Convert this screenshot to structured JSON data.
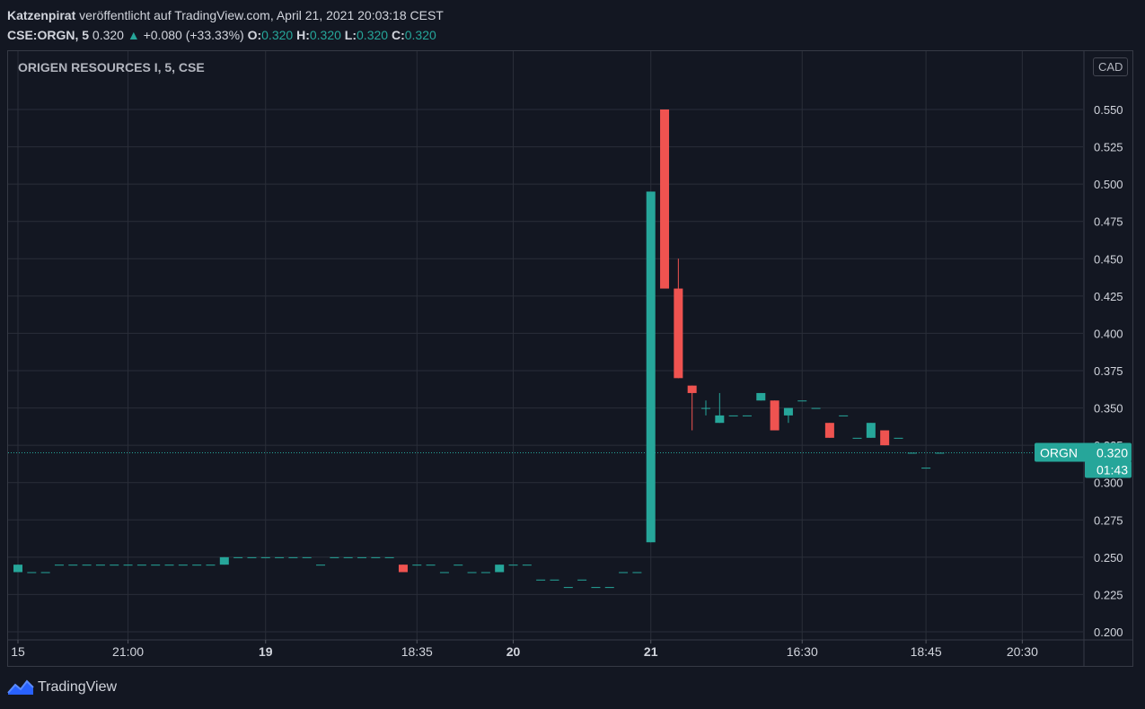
{
  "header": {
    "author": "Katzenpirat",
    "published": "veröffentlicht auf TradingView.com, April 21, 2021 20:03:18 CEST",
    "symbol_interval": "CSE:ORGN, 5",
    "last_price": "0.320",
    "change_arrow": "▲",
    "change": "+0.080 (+33.33%)",
    "o_label": "O:",
    "o_value": "0.320",
    "h_label": "H:",
    "h_value": "0.320",
    "l_label": "L:",
    "l_value": "0.320",
    "c_label": "C:",
    "c_value": "0.320"
  },
  "chart_title": "ORIGEN RESOURCES I, 5, CSE",
  "currency": "CAD",
  "price_badge": {
    "symbol": "ORGN",
    "price": "0.320",
    "countdown": "01:43"
  },
  "footer": {
    "brand": "TradingView"
  },
  "colors": {
    "up": "#26a69a",
    "down": "#ef5350",
    "background": "#131722",
    "grid": "#2a2e39"
  },
  "chart_data": {
    "type": "candlestick",
    "title": "ORIGEN RESOURCES I, 5, CSE",
    "ylim": [
      0.2,
      0.56
    ],
    "y_ticks": [
      0.2,
      0.225,
      0.25,
      0.275,
      0.3,
      0.325,
      0.35,
      0.375,
      0.4,
      0.425,
      0.45,
      0.475,
      0.5,
      0.525,
      0.55
    ],
    "x_ticks": [
      {
        "label": "15",
        "bold": false,
        "i": 0
      },
      {
        "label": "21:00",
        "bold": false,
        "i": 8
      },
      {
        "label": "19",
        "bold": true,
        "i": 18
      },
      {
        "label": "18:35",
        "bold": false,
        "i": 29
      },
      {
        "label": "20",
        "bold": true,
        "i": 36
      },
      {
        "label": "21",
        "bold": true,
        "i": 46
      },
      {
        "label": "16:30",
        "bold": false,
        "i": 57
      },
      {
        "label": "18:45",
        "bold": false,
        "i": 66
      },
      {
        "label": "20:30",
        "bold": false,
        "i": 73
      }
    ],
    "last_value": 0.32,
    "candles": [
      {
        "o": 0.24,
        "h": 0.245,
        "l": 0.24,
        "c": 0.245
      },
      {
        "o": 0.24,
        "h": 0.24,
        "l": 0.24,
        "c": 0.24
      },
      {
        "o": 0.24,
        "h": 0.24,
        "l": 0.24,
        "c": 0.24
      },
      {
        "o": 0.245,
        "h": 0.245,
        "l": 0.245,
        "c": 0.245
      },
      {
        "o": 0.245,
        "h": 0.245,
        "l": 0.245,
        "c": 0.245
      },
      {
        "o": 0.245,
        "h": 0.245,
        "l": 0.245,
        "c": 0.245
      },
      {
        "o": 0.245,
        "h": 0.245,
        "l": 0.245,
        "c": 0.245
      },
      {
        "o": 0.245,
        "h": 0.245,
        "l": 0.245,
        "c": 0.245
      },
      {
        "o": 0.245,
        "h": 0.245,
        "l": 0.245,
        "c": 0.245
      },
      {
        "o": 0.245,
        "h": 0.245,
        "l": 0.245,
        "c": 0.245
      },
      {
        "o": 0.245,
        "h": 0.245,
        "l": 0.245,
        "c": 0.245
      },
      {
        "o": 0.245,
        "h": 0.245,
        "l": 0.245,
        "c": 0.245
      },
      {
        "o": 0.245,
        "h": 0.245,
        "l": 0.245,
        "c": 0.245
      },
      {
        "o": 0.245,
        "h": 0.245,
        "l": 0.245,
        "c": 0.245
      },
      {
        "o": 0.245,
        "h": 0.245,
        "l": 0.245,
        "c": 0.245
      },
      {
        "o": 0.245,
        "h": 0.25,
        "l": 0.245,
        "c": 0.25
      },
      {
        "o": 0.25,
        "h": 0.25,
        "l": 0.25,
        "c": 0.25
      },
      {
        "o": 0.25,
        "h": 0.25,
        "l": 0.25,
        "c": 0.25
      },
      {
        "o": 0.25,
        "h": 0.25,
        "l": 0.25,
        "c": 0.25
      },
      {
        "o": 0.25,
        "h": 0.25,
        "l": 0.25,
        "c": 0.25
      },
      {
        "o": 0.25,
        "h": 0.25,
        "l": 0.25,
        "c": 0.25
      },
      {
        "o": 0.25,
        "h": 0.25,
        "l": 0.25,
        "c": 0.25
      },
      {
        "o": 0.245,
        "h": 0.245,
        "l": 0.245,
        "c": 0.245
      },
      {
        "o": 0.25,
        "h": 0.25,
        "l": 0.25,
        "c": 0.25
      },
      {
        "o": 0.25,
        "h": 0.25,
        "l": 0.25,
        "c": 0.25
      },
      {
        "o": 0.25,
        "h": 0.25,
        "l": 0.25,
        "c": 0.25
      },
      {
        "o": 0.25,
        "h": 0.25,
        "l": 0.25,
        "c": 0.25
      },
      {
        "o": 0.25,
        "h": 0.25,
        "l": 0.25,
        "c": 0.25
      },
      {
        "o": 0.245,
        "h": 0.245,
        "l": 0.24,
        "c": 0.24
      },
      {
        "o": 0.245,
        "h": 0.245,
        "l": 0.245,
        "c": 0.245
      },
      {
        "o": 0.245,
        "h": 0.245,
        "l": 0.245,
        "c": 0.245
      },
      {
        "o": 0.24,
        "h": 0.24,
        "l": 0.24,
        "c": 0.24
      },
      {
        "o": 0.245,
        "h": 0.245,
        "l": 0.245,
        "c": 0.245
      },
      {
        "o": 0.24,
        "h": 0.24,
        "l": 0.24,
        "c": 0.24
      },
      {
        "o": 0.24,
        "h": 0.24,
        "l": 0.24,
        "c": 0.24
      },
      {
        "o": 0.24,
        "h": 0.245,
        "l": 0.24,
        "c": 0.245
      },
      {
        "o": 0.245,
        "h": 0.245,
        "l": 0.245,
        "c": 0.245
      },
      {
        "o": 0.245,
        "h": 0.245,
        "l": 0.245,
        "c": 0.245
      },
      {
        "o": 0.235,
        "h": 0.235,
        "l": 0.235,
        "c": 0.235
      },
      {
        "o": 0.235,
        "h": 0.235,
        "l": 0.235,
        "c": 0.235
      },
      {
        "o": 0.23,
        "h": 0.23,
        "l": 0.23,
        "c": 0.23
      },
      {
        "o": 0.235,
        "h": 0.235,
        "l": 0.235,
        "c": 0.235
      },
      {
        "o": 0.23,
        "h": 0.23,
        "l": 0.23,
        "c": 0.23
      },
      {
        "o": 0.23,
        "h": 0.23,
        "l": 0.23,
        "c": 0.23
      },
      {
        "o": 0.24,
        "h": 0.24,
        "l": 0.24,
        "c": 0.24
      },
      {
        "o": 0.24,
        "h": 0.24,
        "l": 0.24,
        "c": 0.24
      },
      {
        "o": 0.26,
        "h": 0.495,
        "l": 0.26,
        "c": 0.495
      },
      {
        "o": 0.55,
        "h": 0.55,
        "l": 0.43,
        "c": 0.43
      },
      {
        "o": 0.43,
        "h": 0.45,
        "l": 0.37,
        "c": 0.37
      },
      {
        "o": 0.365,
        "h": 0.365,
        "l": 0.335,
        "c": 0.36
      },
      {
        "o": 0.35,
        "h": 0.355,
        "l": 0.345,
        "c": 0.35
      },
      {
        "o": 0.34,
        "h": 0.36,
        "l": 0.34,
        "c": 0.345
      },
      {
        "o": 0.345,
        "h": 0.345,
        "l": 0.345,
        "c": 0.345
      },
      {
        "o": 0.345,
        "h": 0.345,
        "l": 0.345,
        "c": 0.345
      },
      {
        "o": 0.355,
        "h": 0.36,
        "l": 0.355,
        "c": 0.36
      },
      {
        "o": 0.355,
        "h": 0.355,
        "l": 0.335,
        "c": 0.335
      },
      {
        "o": 0.345,
        "h": 0.35,
        "l": 0.34,
        "c": 0.35
      },
      {
        "o": 0.355,
        "h": 0.355,
        "l": 0.355,
        "c": 0.355
      },
      {
        "o": 0.35,
        "h": 0.35,
        "l": 0.35,
        "c": 0.35
      },
      {
        "o": 0.34,
        "h": 0.34,
        "l": 0.33,
        "c": 0.33
      },
      {
        "o": 0.345,
        "h": 0.345,
        "l": 0.345,
        "c": 0.345
      },
      {
        "o": 0.33,
        "h": 0.33,
        "l": 0.33,
        "c": 0.33
      },
      {
        "o": 0.33,
        "h": 0.34,
        "l": 0.33,
        "c": 0.34
      },
      {
        "o": 0.335,
        "h": 0.335,
        "l": 0.325,
        "c": 0.325
      },
      {
        "o": 0.33,
        "h": 0.33,
        "l": 0.33,
        "c": 0.33
      },
      {
        "o": 0.32,
        "h": 0.32,
        "l": 0.32,
        "c": 0.32
      },
      {
        "o": 0.31,
        "h": 0.31,
        "l": 0.31,
        "c": 0.31
      },
      {
        "o": 0.32,
        "h": 0.32,
        "l": 0.32,
        "c": 0.32
      }
    ]
  }
}
